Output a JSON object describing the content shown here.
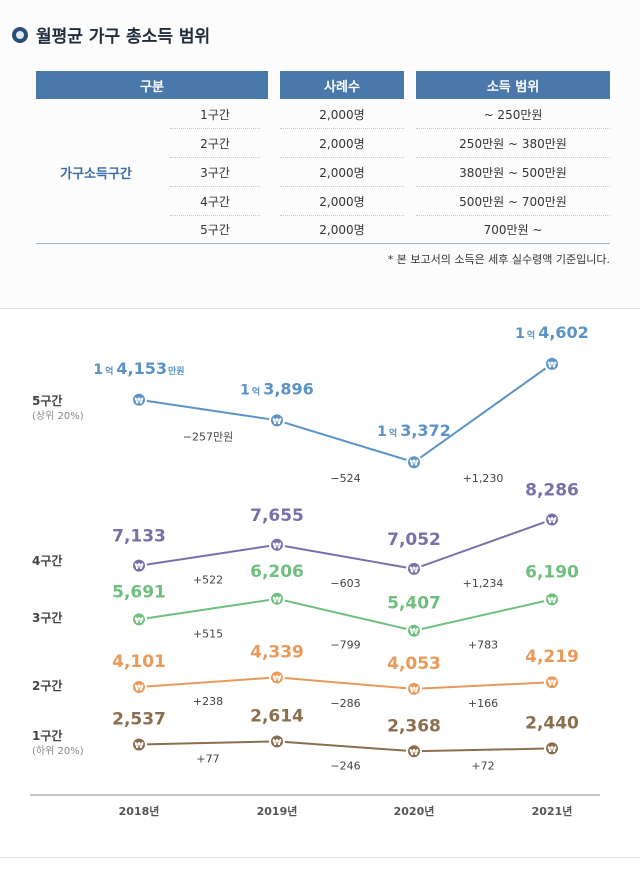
{
  "title": "월평균 가구 총소득 범위",
  "table": {
    "headers": [
      "구분",
      "사례수",
      "소득 범위"
    ],
    "group_label": "가구소득구간",
    "rows": [
      {
        "section": "1구간",
        "count": "2,000명",
        "range": "~ 250만원"
      },
      {
        "section": "2구간",
        "count": "2,000명",
        "range": "250만원 ~ 380만원"
      },
      {
        "section": "3구간",
        "count": "2,000명",
        "range": "380만원 ~ 500만원"
      },
      {
        "section": "4구간",
        "count": "2,000명",
        "range": "500만원 ~ 700만원"
      },
      {
        "section": "5구간",
        "count": "2,000명",
        "range": "700만원 ~"
      }
    ],
    "note": "* 본 보고서의 소득은 세후 실수령액 기준입니다."
  },
  "colors": {
    "header_bg": "#4a78ab",
    "group_label": "#3a6aa3",
    "q5": "#5b93c7",
    "q4": "#7a6fab",
    "q3": "#6fbf7d",
    "q2": "#e99a5a",
    "q1": "#8b6e4e"
  },
  "chart_data": {
    "type": "line",
    "title": "",
    "xlabel": "",
    "ylabel": "",
    "unit": "만원",
    "marker_symbol": "₩",
    "categories": [
      "2018년",
      "2019년",
      "2020년",
      "2021년"
    ],
    "series": [
      {
        "id": "q5",
        "name": "5구간",
        "sublabel": "(상위 20%)",
        "values": [
          14153,
          13896,
          13372,
          14602
        ],
        "labels": [
          {
            "pre": "1",
            "eok": "억",
            "num": "4,153",
            "unit": "만원"
          },
          {
            "pre": "1",
            "eok": "억",
            "num": "3,896",
            "unit": ""
          },
          {
            "pre": "1",
            "eok": "억",
            "num": "3,372",
            "unit": ""
          },
          {
            "pre": "1",
            "eok": "억",
            "num": "4,602",
            "unit": ""
          }
        ],
        "deltas": [
          "−257만원",
          "−524",
          "+1,230"
        ]
      },
      {
        "id": "q4",
        "name": "4구간",
        "sublabel": "",
        "values": [
          7133,
          7655,
          7052,
          8286
        ],
        "labels": [
          {
            "num": "7,133"
          },
          {
            "num": "7,655"
          },
          {
            "num": "7,052"
          },
          {
            "num": "8,286"
          }
        ],
        "deltas": [
          "+522",
          "−603",
          "+1,234"
        ]
      },
      {
        "id": "q3",
        "name": "3구간",
        "sublabel": "",
        "values": [
          5691,
          6206,
          5407,
          6190
        ],
        "labels": [
          {
            "num": "5,691"
          },
          {
            "num": "6,206"
          },
          {
            "num": "5,407"
          },
          {
            "num": "6,190"
          }
        ],
        "deltas": [
          "+515",
          "−799",
          "+783"
        ]
      },
      {
        "id": "q2",
        "name": "2구간",
        "sublabel": "",
        "values": [
          4101,
          4339,
          4053,
          4219
        ],
        "labels": [
          {
            "num": "4,101"
          },
          {
            "num": "4,339"
          },
          {
            "num": "4,053"
          },
          {
            "num": "4,219"
          }
        ],
        "deltas": [
          "+238",
          "−286",
          "+166"
        ]
      },
      {
        "id": "q1",
        "name": "1구간",
        "sublabel": "(하위 20%)",
        "values": [
          2537,
          2614,
          2368,
          2440
        ],
        "labels": [
          {
            "num": "2,537"
          },
          {
            "num": "2,614"
          },
          {
            "num": "2,368"
          },
          {
            "num": "2,440"
          }
        ],
        "deltas": [
          "+77",
          "−246",
          "+72"
        ]
      }
    ]
  }
}
